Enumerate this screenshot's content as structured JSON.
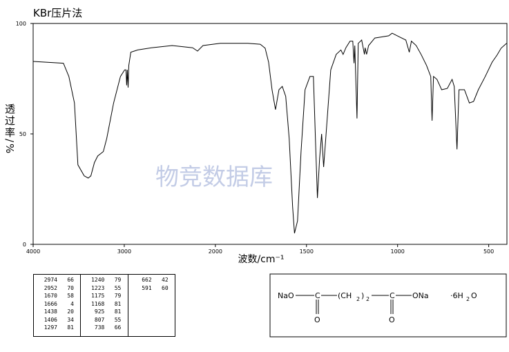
{
  "chart_data": {
    "type": "line",
    "title": "KBr压片法",
    "y_label": "透过率/%",
    "x_label": "波数/cm⁻¹",
    "watermark": "物竞数据库",
    "xlim": [
      4000,
      400
    ],
    "x_break": 2000,
    "x_compress": 0.5,
    "xticks": [
      4000,
      3000,
      2000,
      1500,
      1000,
      500
    ],
    "ylim": [
      0,
      100
    ],
    "yticks": [
      0,
      50,
      100
    ],
    "color": "#000000",
    "x": [
      4000,
      3668,
      3608,
      3547,
      3509,
      3440,
      3396,
      3366,
      3328,
      3291,
      3230,
      3192,
      3117,
      3042,
      2996,
      2981,
      2974,
      2966,
      2958,
      2950,
      2928,
      2853,
      2702,
      2475,
      2249,
      2196,
      2136,
      1973,
      1822,
      1754,
      1727,
      1708,
      1689,
      1670,
      1651,
      1633,
      1614,
      1595,
      1576,
      1566,
      1549,
      1530,
      1508,
      1481,
      1462,
      1451,
      1440,
      1428,
      1417,
      1406,
      1394,
      1367,
      1337,
      1311,
      1299,
      1284,
      1261,
      1246,
      1239,
      1235,
      1223,
      1216,
      1197,
      1182,
      1178,
      1170,
      1159,
      1125,
      1049,
      1030,
      992,
      955,
      936,
      924,
      898,
      871,
      841,
      818,
      811,
      803,
      784,
      758,
      727,
      701,
      689,
      674,
      663,
      633,
      606,
      583,
      557,
      519,
      481,
      455,
      432,
      402
    ],
    "values": [
      82.8,
      82,
      76,
      64,
      36,
      31,
      30,
      31,
      37,
      40,
      42,
      48,
      64,
      76,
      79,
      79,
      72,
      79,
      71,
      81,
      87,
      88,
      89,
      90,
      89,
      87.5,
      90,
      91,
      91,
      90.6,
      88.8,
      82.5,
      70,
      61,
      70,
      71.5,
      67,
      48,
      17,
      5,
      10.6,
      42,
      70,
      76,
      76,
      48,
      21,
      39,
      50,
      35,
      48,
      79,
      86,
      88,
      86,
      89,
      92,
      92,
      82,
      90,
      57,
      91,
      92.5,
      86,
      89,
      86,
      90,
      93.4,
      94.4,
      95.6,
      94,
      92.5,
      87,
      92,
      90,
      86,
      81,
      76,
      56,
      76,
      74.7,
      70,
      70.6,
      74.7,
      71.5,
      43,
      70,
      70,
      64,
      64.7,
      70,
      76,
      82.5,
      85.6,
      88.8,
      91
    ]
  },
  "peak_table": [
    [
      [
        2974,
        66
      ],
      [
        2952,
        70
      ],
      [
        1670,
        58
      ],
      [
        1666,
        4
      ],
      [
        1438,
        20
      ],
      [
        1406,
        34
      ],
      [
        1297,
        81
      ]
    ],
    [
      [
        1240,
        79
      ],
      [
        1223,
        55
      ],
      [
        1175,
        79
      ],
      [
        1168,
        81
      ],
      [
        925,
        81
      ],
      [
        807,
        55
      ],
      [
        738,
        66
      ]
    ],
    [
      [
        662,
        42
      ],
      [
        591,
        60
      ]
    ]
  ],
  "structure": {
    "left": "NaO",
    "carbon1": "C",
    "chain_open": "(CH",
    "chain_sub1": "2",
    "chain_close": ")",
    "chain_sub2": "2",
    "carbon2": "C",
    "right": "ONa",
    "oxygen1": "O",
    "oxygen2": "O",
    "hydrate": "·6H",
    "hydrate_sub": "2",
    "hydrate_end": "O"
  }
}
